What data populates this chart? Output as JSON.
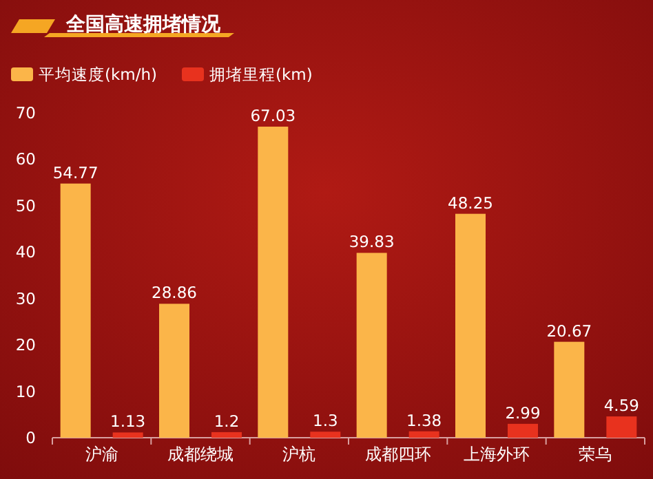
{
  "chart_data": {
    "type": "bar",
    "title": "全国高速拥堵情况",
    "categories": [
      "沪渝",
      "成都绕城",
      "沪杭",
      "成都四环",
      "上海外环",
      "荣乌"
    ],
    "series": [
      {
        "name": "平均速度(km/h)",
        "color": "#fbb549",
        "values": [
          54.77,
          28.86,
          67.03,
          39.83,
          48.25,
          20.67
        ]
      },
      {
        "name": "拥堵里程(km)",
        "color": "#e8321e",
        "values": [
          1.13,
          1.2,
          1.3,
          1.38,
          2.99,
          4.59
        ]
      }
    ],
    "ylim": [
      0,
      70
    ],
    "yticks": [
      0,
      10,
      20,
      30,
      40,
      50,
      60,
      70
    ],
    "data_labels": true,
    "legend": "top left"
  }
}
